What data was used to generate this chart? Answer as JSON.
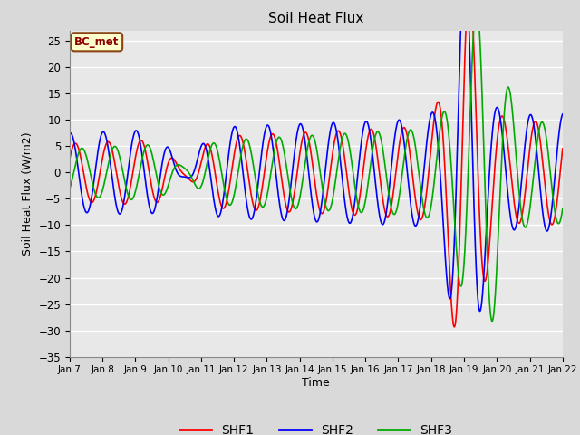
{
  "title": "Soil Heat Flux",
  "ylabel": "Soil Heat Flux (W/m2)",
  "xlabel": "Time",
  "ylim": [
    -35,
    27
  ],
  "xlim_days": [
    7,
    22
  ],
  "background_color": "#d9d9d9",
  "plot_bg_color": "#e8e8e8",
  "grid_color": "white",
  "legend_label": "BC_met",
  "legend_bg": "#ffffcc",
  "legend_edge": "#8B4513",
  "series_colors": [
    "red",
    "blue",
    "#00aa00"
  ],
  "series_labels": [
    "SHF1",
    "SHF2",
    "SHF3"
  ],
  "tick_labels": [
    "Jan 7",
    "Jan 8",
    "Jan 9",
    "Jan 10",
    "Jan 11",
    "Jan 12",
    "Jan 13",
    "Jan 14",
    "Jan 15",
    "Jan 16",
    "Jan 17",
    "Jan 18",
    "Jan 19",
    "Jan 20",
    "Jan 21",
    "Jan 22"
  ],
  "tick_positions": [
    7,
    8,
    9,
    10,
    11,
    12,
    13,
    14,
    15,
    16,
    17,
    18,
    19,
    20,
    21,
    22
  ],
  "yticks": [
    -35,
    -30,
    -25,
    -20,
    -15,
    -10,
    -5,
    0,
    5,
    10,
    15,
    20,
    25
  ]
}
